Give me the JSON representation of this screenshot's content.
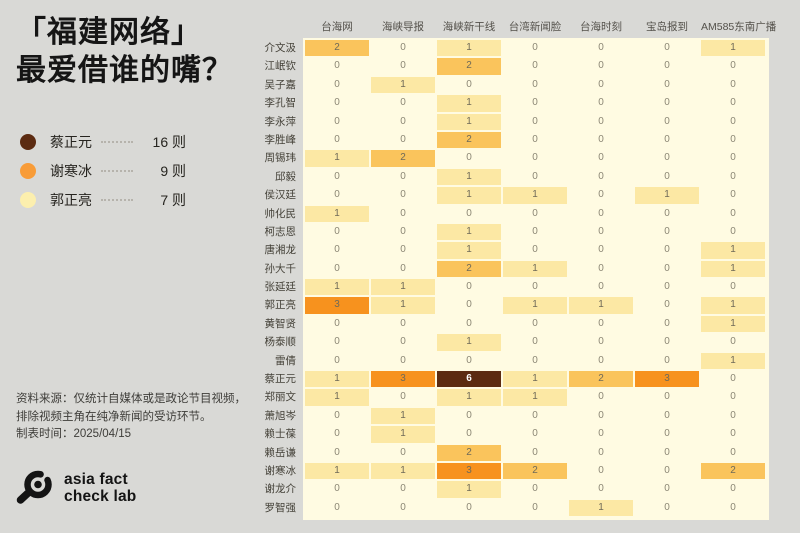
{
  "page": {
    "title_line1": "「福建网络」",
    "title_line2": "最爱借谁的嘴？",
    "background_color": "#D9D9D6"
  },
  "legend": {
    "items": [
      {
        "name": "蔡正元",
        "count_label": "16 则",
        "color": "#5C2B11"
      },
      {
        "name": "谢寒冰",
        "count_label": "9 则",
        "color": "#F89C38"
      },
      {
        "name": "郭正亮",
        "count_label": "7 则",
        "color": "#FCEFAE"
      }
    ]
  },
  "source": {
    "line1": "资料来源：仅统计自媒体或是政论节目视频，",
    "line2": "排除视频主角在纯净新闻的受访环节。",
    "line3": "制表时间：2025/04/15"
  },
  "logo": {
    "icon": "magnifier-icon",
    "line1": "asia fact",
    "line2": "check lab"
  },
  "chart_data": {
    "type": "heatmap",
    "title": "「福建网络」最爱借谁的嘴？",
    "legend_position": "left",
    "columns": [
      "台海网",
      "海峡导报",
      "海峡新干线",
      "台湾新闻脸",
      "台海时刻",
      "宝岛报到",
      "AM585东南广播"
    ],
    "rows": [
      "介文汲",
      "江岷钦",
      "吴子嘉",
      "李孔智",
      "李永萍",
      "李胜峰",
      "周锡玮",
      "邱毅",
      "侯汉廷",
      "帅化民",
      "柯志恩",
      "唐湘龙",
      "孙大千",
      "张延廷",
      "郭正亮",
      "黄智贤",
      "杨泰顺",
      "雷倩",
      "蔡正元",
      "郑丽文",
      "萧旭岑",
      "赖士葆",
      "赖岳谦",
      "谢寒冰",
      "谢龙介",
      "罗智强"
    ],
    "values": [
      [
        2,
        0,
        1,
        0,
        0,
        0,
        1
      ],
      [
        0,
        0,
        2,
        0,
        0,
        0,
        0
      ],
      [
        0,
        1,
        0,
        0,
        0,
        0,
        0
      ],
      [
        0,
        0,
        1,
        0,
        0,
        0,
        0
      ],
      [
        0,
        0,
        1,
        0,
        0,
        0,
        0
      ],
      [
        0,
        0,
        2,
        0,
        0,
        0,
        0
      ],
      [
        1,
        2,
        0,
        0,
        0,
        0,
        0
      ],
      [
        0,
        0,
        1,
        0,
        0,
        0,
        0
      ],
      [
        0,
        0,
        1,
        1,
        0,
        1,
        0
      ],
      [
        1,
        0,
        0,
        0,
        0,
        0,
        0
      ],
      [
        0,
        0,
        1,
        0,
        0,
        0,
        0
      ],
      [
        0,
        0,
        1,
        0,
        0,
        0,
        1
      ],
      [
        0,
        0,
        2,
        1,
        0,
        0,
        1
      ],
      [
        1,
        1,
        0,
        0,
        0,
        0,
        0
      ],
      [
        3,
        1,
        0,
        1,
        1,
        0,
        1
      ],
      [
        0,
        0,
        0,
        0,
        0,
        0,
        1
      ],
      [
        0,
        0,
        1,
        0,
        0,
        0,
        0
      ],
      [
        0,
        0,
        0,
        0,
        0,
        0,
        1
      ],
      [
        1,
        3,
        6,
        1,
        2,
        3,
        0
      ],
      [
        1,
        0,
        1,
        1,
        0,
        0,
        0
      ],
      [
        0,
        1,
        0,
        0,
        0,
        0,
        0
      ],
      [
        0,
        1,
        0,
        0,
        0,
        0,
        0
      ],
      [
        0,
        0,
        2,
        0,
        0,
        0,
        0
      ],
      [
        1,
        1,
        3,
        2,
        0,
        0,
        2
      ],
      [
        0,
        0,
        1,
        0,
        0,
        0,
        0
      ],
      [
        0,
        0,
        0,
        0,
        1,
        0,
        0
      ]
    ],
    "row_totals_highlighted": {
      "蔡正元": 16,
      "谢寒冰": 9,
      "郭正亮": 7
    },
    "color_scale": {
      "0": "#FFFBE2",
      "1": "#FCE8A4",
      "2": "#FAC45C",
      "3": "#F7921E",
      "6": "#5C2B11"
    },
    "panel_background": "#FFFBE2"
  }
}
